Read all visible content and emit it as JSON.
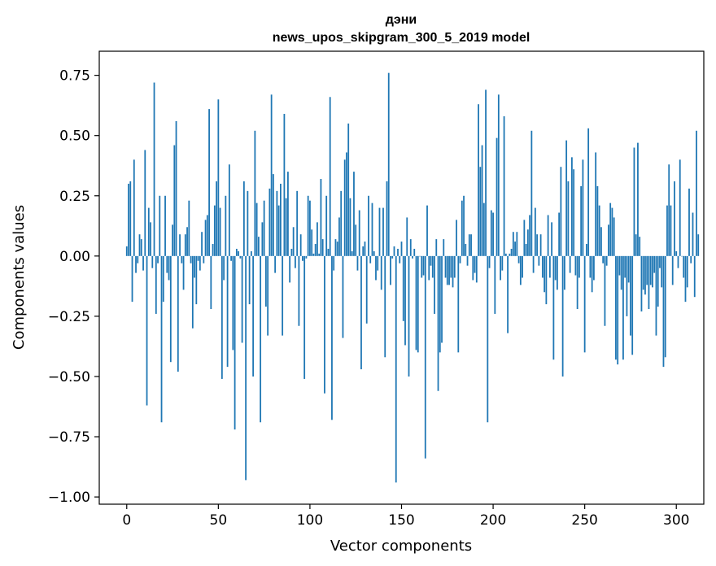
{
  "chart_data": {
    "type": "bar",
    "title": "дэни",
    "subtitle": "news_upos_skipgram_300_5_2019 model",
    "xlabel": "Vector components",
    "ylabel": "Components values",
    "xlim": [
      -15,
      315
    ],
    "ylim": [
      -1.03,
      0.85
    ],
    "xticks": [
      0,
      50,
      100,
      150,
      200,
      250,
      300
    ],
    "xtick_labels": [
      "0",
      "50",
      "100",
      "150",
      "200",
      "250",
      "300"
    ],
    "yticks": [
      0.75,
      0.5,
      0.25,
      0.0,
      -0.25,
      -0.5,
      -0.75,
      -1.0
    ],
    "ytick_labels": [
      "0.75",
      "0.50",
      "0.25",
      "0.00",
      "−0.25",
      "−0.50",
      "−0.75",
      "−1.00"
    ],
    "bar_color": "#1f77b4",
    "series": [
      {
        "name": "дэни",
        "x_start": 0,
        "values": [
          0.04,
          0.3,
          0.31,
          -0.19,
          0.4,
          -0.07,
          -0.03,
          0.09,
          0.07,
          -0.06,
          0.44,
          -0.62,
          0.2,
          0.14,
          -0.05,
          0.72,
          -0.24,
          -0.03,
          0.25,
          -0.69,
          -0.19,
          0.25,
          -0.07,
          -0.1,
          -0.44,
          0.13,
          0.46,
          0.56,
          -0.48,
          0.09,
          -0.03,
          -0.14,
          0.09,
          0.12,
          0.23,
          -0.03,
          -0.3,
          -0.09,
          -0.2,
          -0.02,
          -0.06,
          0.1,
          -0.03,
          0.15,
          0.17,
          0.61,
          -0.22,
          0.05,
          0.21,
          0.31,
          0.65,
          0.2,
          -0.51,
          -0.1,
          0.25,
          -0.46,
          0.38,
          -0.02,
          -0.39,
          -0.72,
          0.03,
          0.02,
          -0.01,
          -0.36,
          0.31,
          -0.93,
          0.27,
          -0.2,
          0.02,
          -0.5,
          0.52,
          0.22,
          0.08,
          -0.69,
          0.14,
          0.23,
          -0.21,
          -0.33,
          0.28,
          0.67,
          0.34,
          -0.07,
          0.27,
          0.21,
          0.3,
          -0.33,
          0.59,
          0.24,
          0.35,
          -0.11,
          0.03,
          0.12,
          -0.05,
          0.27,
          -0.29,
          0.09,
          -0.02,
          -0.51,
          -0.01,
          0.25,
          0.23,
          0.11,
          0.01,
          0.05,
          0.14,
          0.01,
          0.32,
          0.07,
          -0.57,
          0.25,
          0.03,
          0.66,
          -0.68,
          -0.06,
          0.07,
          0.06,
          0.16,
          0.27,
          -0.34,
          0.4,
          0.43,
          0.55,
          0.24,
          0.02,
          0.35,
          0.13,
          -0.06,
          0.19,
          -0.47,
          0.04,
          0.06,
          -0.28,
          0.25,
          -0.03,
          0.22,
          0.02,
          -0.1,
          -0.06,
          0.2,
          -0.14,
          0.2,
          -0.42,
          0.31,
          0.76,
          -0.12,
          -0.01,
          0.04,
          -0.94,
          0.03,
          -0.03,
          0.06,
          -0.27,
          -0.37,
          0.16,
          -0.5,
          0.07,
          -0.01,
          0.03,
          -0.39,
          -0.4,
          0.0,
          -0.09,
          -0.08,
          -0.84,
          0.21,
          -0.1,
          -0.04,
          -0.09,
          -0.24,
          0.07,
          -0.56,
          -0.4,
          -0.36,
          0.07,
          -0.09,
          -0.12,
          -0.12,
          -0.09,
          -0.13,
          -0.09,
          0.15,
          -0.4,
          -0.03,
          0.23,
          0.25,
          0.05,
          -0.04,
          0.09,
          0.09,
          -0.1,
          -0.07,
          -0.11,
          0.63,
          0.37,
          0.46,
          0.22,
          0.69,
          -0.69,
          -0.05,
          0.19,
          0.18,
          -0.24,
          0.49,
          0.67,
          -0.1,
          -0.06,
          0.58,
          0.01,
          -0.32,
          0.01,
          0.03,
          0.1,
          0.06,
          0.1,
          -0.03,
          -0.12,
          -0.09,
          0.15,
          0.05,
          0.11,
          0.17,
          0.52,
          -0.07,
          0.2,
          0.09,
          -0.04,
          0.09,
          -0.09,
          -0.15,
          -0.2,
          0.17,
          -0.09,
          0.14,
          -0.43,
          -0.1,
          -0.14,
          0.18,
          0.37,
          -0.5,
          -0.14,
          0.48,
          0.31,
          -0.07,
          0.41,
          0.36,
          -0.08,
          -0.22,
          -0.09,
          0.29,
          0.4,
          -0.4,
          0.05,
          0.53,
          -0.09,
          -0.15,
          -0.1,
          0.43,
          0.29,
          0.21,
          0.12,
          -0.03,
          -0.29,
          -0.04,
          0.13,
          0.22,
          0.2,
          0.16,
          -0.43,
          -0.45,
          -0.08,
          -0.14,
          -0.43,
          -0.09,
          -0.25,
          -0.11,
          -0.33,
          -0.41,
          0.45,
          0.09,
          0.47,
          0.08,
          -0.23,
          -0.14,
          -0.16,
          -0.12,
          -0.22,
          -0.12,
          -0.13,
          -0.07,
          -0.33,
          -0.21,
          -0.05,
          -0.13,
          -0.46,
          -0.42,
          0.21,
          0.38,
          0.21,
          -0.12,
          0.31,
          0.02,
          -0.05,
          0.4,
          0.0,
          -0.09,
          -0.19,
          -0.13,
          0.28,
          -0.03,
          0.18,
          -0.17,
          0.52,
          0.09
        ]
      }
    ]
  }
}
